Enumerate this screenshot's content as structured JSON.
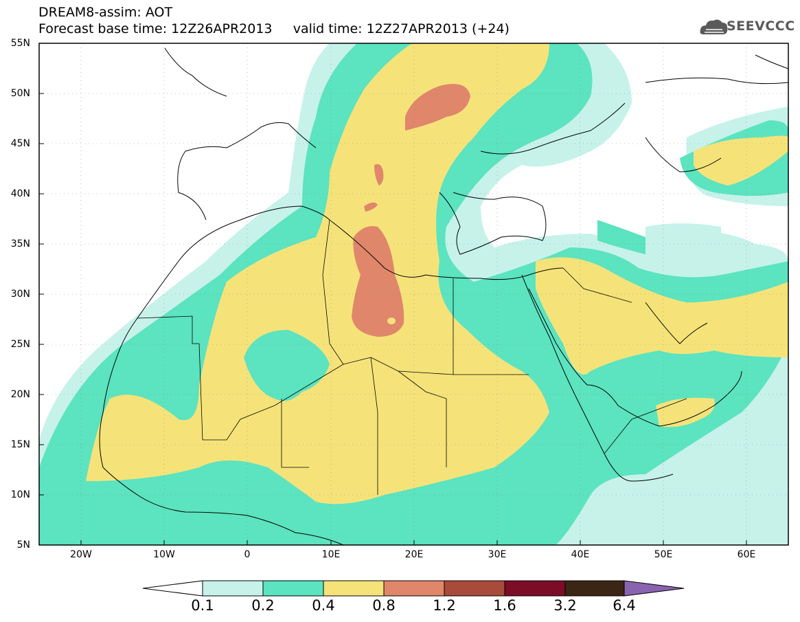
{
  "header": {
    "title_line_1": "DREAM8-assim: AOT",
    "title_line_2": "Forecast base time: 12Z26APR2013     valid time: 12Z27APR2013 (+24)",
    "logo_text": "SEEVCCC"
  },
  "map": {
    "type": "filled-contour",
    "variable": "AOT",
    "lat_labels": [
      "55N",
      "50N",
      "45N",
      "40N",
      "35N",
      "30N",
      "25N",
      "20N",
      "15N",
      "10N",
      "5N"
    ],
    "lon_labels": [
      "20W",
      "10W",
      "0",
      "10E",
      "20E",
      "30E",
      "40E",
      "50E",
      "60E"
    ],
    "lat_range": [
      5,
      55
    ],
    "lon_range": [
      -25,
      65
    ],
    "grid": "dotted"
  },
  "colorbar": {
    "levels": [
      "0.1",
      "0.2",
      "0.4",
      "0.8",
      "1.2",
      "1.6",
      "3.2",
      "6.4"
    ],
    "colors": [
      "#ffffff",
      "#c6f2ea",
      "#5ce3bf",
      "#f5e37a",
      "#e0866b",
      "#a84b3a",
      "#7b0d26",
      "#3b2616",
      "#8a63b0"
    ]
  },
  "colors": {
    "level_0_1": "#c6f2ea",
    "level_0_2": "#5ce3bf",
    "level_0_4": "#f5e37a",
    "level_0_8": "#e0866b",
    "coast": "#000000"
  }
}
